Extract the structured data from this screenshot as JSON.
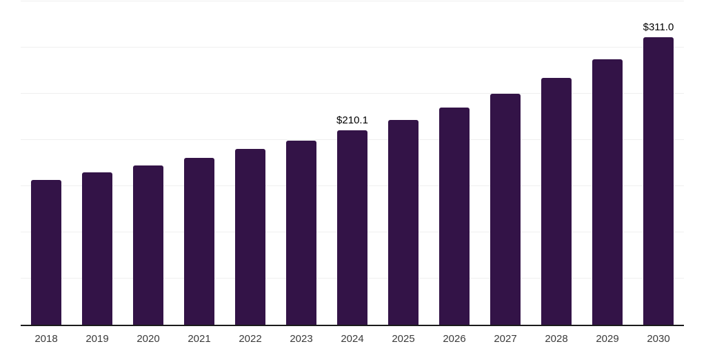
{
  "chart_data": {
    "type": "bar",
    "title": "",
    "xlabel": "",
    "ylabel": "",
    "categories": [
      "2018",
      "2019",
      "2020",
      "2021",
      "2022",
      "2023",
      "2024",
      "2025",
      "2026",
      "2027",
      "2028",
      "2029",
      "2030"
    ],
    "values": [
      157.1,
      165.3,
      172.1,
      180.3,
      190.1,
      199.6,
      210.1,
      221.9,
      235.2,
      250.1,
      267.4,
      287.2,
      311.0
    ],
    "value_labels": [
      "",
      "",
      "",
      "",
      "",
      "",
      "$210.1",
      "",
      "",
      "",
      "",
      "",
      "$311.0"
    ],
    "ylim": [
      0,
      350
    ],
    "gridline_interval": 50,
    "grid": true,
    "legend": false,
    "y_axis_labels_visible": false,
    "bar_color": "#331347",
    "gridline_color": "#efefef",
    "axis_color": "#1a1a1a",
    "x_label_color": "#3a3a3a",
    "value_label_color": "#000000"
  }
}
